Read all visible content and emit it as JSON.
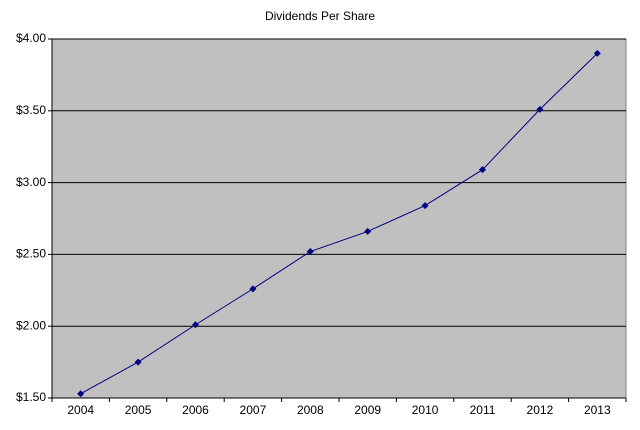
{
  "chart_data": {
    "type": "line",
    "title": "Dividends Per Share",
    "categories": [
      "2004",
      "2005",
      "2006",
      "2007",
      "2008",
      "2009",
      "2010",
      "2011",
      "2012",
      "2013"
    ],
    "values": [
      1.53,
      1.75,
      2.01,
      2.26,
      2.52,
      2.66,
      2.84,
      3.09,
      3.51,
      3.9
    ],
    "color": "#000080",
    "ylim": [
      1.5,
      4.0
    ],
    "yticks": [
      {
        "value": 1.5,
        "label": "$1.50"
      },
      {
        "value": 2.0,
        "label": "$2.00"
      },
      {
        "value": 2.5,
        "label": "$2.50"
      },
      {
        "value": 3.0,
        "label": "$3.00"
      },
      {
        "value": 3.5,
        "label": "$3.50"
      },
      {
        "value": 4.0,
        "label": "$4.00"
      }
    ],
    "grid": true
  }
}
